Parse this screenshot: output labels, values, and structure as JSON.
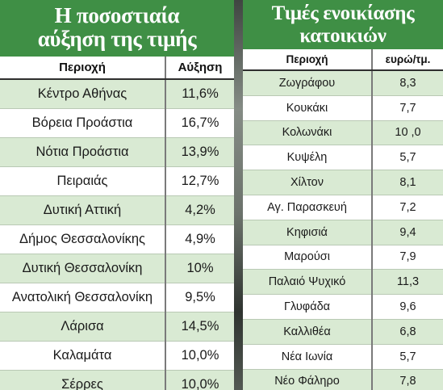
{
  "left_table": {
    "title_line1": "Η ποσοστιαία",
    "title_line2": "αύξηση της τιμής",
    "headers": [
      "Περιοχή",
      "Αύξηση"
    ],
    "rows": [
      [
        "Κέντρο Αθήνας",
        "11,6%"
      ],
      [
        "Βόρεια Προάστια",
        "16,7%"
      ],
      [
        "Νότια Προάστια",
        "13,9%"
      ],
      [
        "Πειραιάς",
        "12,7%"
      ],
      [
        "Δυτική Αττική",
        "4,2%"
      ],
      [
        "Δήμος Θεσσαλονίκης",
        "4,9%"
      ],
      [
        "Δυτική Θεσσαλονίκη",
        "10%"
      ],
      [
        "Ανατολική Θεσσαλονίκη",
        "9,5%"
      ],
      [
        "Λάρισα",
        "14,5%"
      ],
      [
        "Καλαμάτα",
        "10,0%"
      ],
      [
        "Σέρρες",
        "10,0%"
      ]
    ]
  },
  "right_table": {
    "title_line1": "Τιμές ενοικίασης",
    "title_line2": "κατοικιών",
    "headers": [
      "Περιοχή",
      "ευρώ/τμ."
    ],
    "rows": [
      [
        "Ζωγράφου",
        "8,3"
      ],
      [
        "Κουκάκι",
        "7,7"
      ],
      [
        "Κολωνάκι",
        "10 ,0"
      ],
      [
        "Κυψέλη",
        "5,7"
      ],
      [
        "Χίλτον",
        "8,1"
      ],
      [
        "Αγ. Παρασκευή",
        "7,2"
      ],
      [
        "Κηφισιά",
        "9,4"
      ],
      [
        "Μαρούσι",
        "7,9"
      ],
      [
        "Παλαιό Ψυχικό",
        "11,3"
      ],
      [
        "Γλυφάδα",
        "9,6"
      ],
      [
        "Καλλιθέα",
        "6,8"
      ],
      [
        "Νέα Ιωνία",
        "5,7"
      ],
      [
        "Νέο Φάληρο",
        "7,8"
      ]
    ]
  },
  "colors": {
    "title_green": "#3f8f45",
    "row_tint": "#d9ead3"
  }
}
